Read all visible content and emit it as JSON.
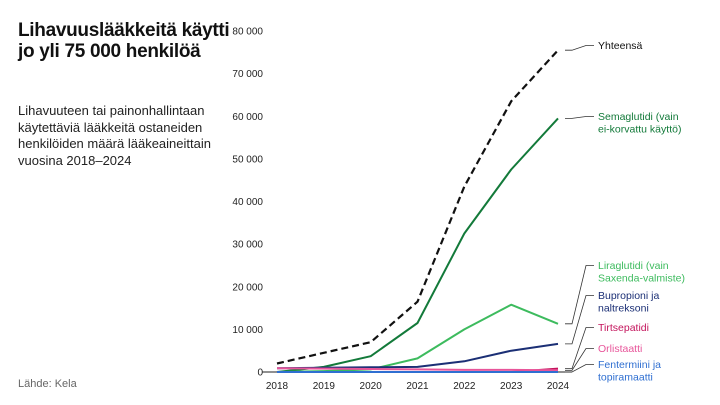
{
  "header": {
    "title": "Lihavuuslääkkeitä käytti jo yli 75 000 henkilöä",
    "subtitle": "Lihavuuteen tai painonhallintaan käytettäviä lääkkeitä ostaneiden henkilöiden määrä lääkeaineittain vuosina 2018–2024",
    "source": "Lähde: Kela"
  },
  "chart_data": {
    "type": "line",
    "title": "Lihavuuslääkkeitä käytti jo yli 75 000 henkilöä",
    "xlabel": "",
    "ylabel": "",
    "x": [
      "2018",
      "2019",
      "2020",
      "2021",
      "2022",
      "2023",
      "2024"
    ],
    "ylim": [
      0,
      80000
    ],
    "yticks": [
      0,
      10000,
      20000,
      30000,
      40000,
      50000,
      60000,
      70000,
      80000
    ],
    "ytick_labels": [
      "0",
      "10 000",
      "20 000",
      "30 000",
      "40 000",
      "50 000",
      "60 000",
      "70 000",
      "80 000"
    ],
    "grid": false,
    "series": [
      {
        "id": "total",
        "name": "Yhteensä",
        "label_lines": [
          "Yhteensä"
        ],
        "color": "#111111",
        "dashed": true,
        "values": [
          2000,
          4500,
          7000,
          16500,
          43500,
          63500,
          75500
        ]
      },
      {
        "id": "semaglutide",
        "name": "Semaglutidi (vain ei-korvattu käyttö)",
        "label_lines": [
          "Semaglutidi (vain",
          "ei-korvattu käyttö)"
        ],
        "color": "#137a3a",
        "dashed": false,
        "values": [
          0,
          1200,
          3700,
          11500,
          32500,
          47500,
          59500
        ]
      },
      {
        "id": "liraglutide",
        "name": "Liraglutidi (vain Saxenda-valmiste)",
        "label_lines": [
          "Liraglutidi (vain",
          "Saxenda-valmiste)"
        ],
        "color": "#3dbb5e",
        "dashed": false,
        "values": [
          0,
          200,
          600,
          3200,
          10000,
          15800,
          11300
        ]
      },
      {
        "id": "bupropion",
        "name": "Bupropioni ja naltreksoni",
        "label_lines": [
          "Bupropioni ja",
          "naltreksoni"
        ],
        "color": "#1b2f75",
        "dashed": false,
        "values": [
          900,
          1000,
          1100,
          1200,
          2500,
          5000,
          6600
        ]
      },
      {
        "id": "tirzepatide",
        "name": "Tirtsepatidi",
        "label_lines": [
          "Tirtsepatidi"
        ],
        "color": "#c4145c",
        "dashed": false,
        "values": [
          0,
          0,
          0,
          0,
          0,
          0,
          800
        ]
      },
      {
        "id": "orlistat",
        "name": "Orlistaatti",
        "label_lines": [
          "Orlistaatti"
        ],
        "color": "#e8559a",
        "dashed": false,
        "values": [
          900,
          800,
          700,
          600,
          500,
          500,
          400
        ]
      },
      {
        "id": "phentermine",
        "name": "Fentermiini ja topiramaatti",
        "label_lines": [
          "Fentermiini ja",
          "topiramaatti"
        ],
        "color": "#2f6fd1",
        "dashed": false,
        "values": [
          0,
          0,
          0,
          0,
          0,
          0,
          0
        ]
      }
    ]
  }
}
